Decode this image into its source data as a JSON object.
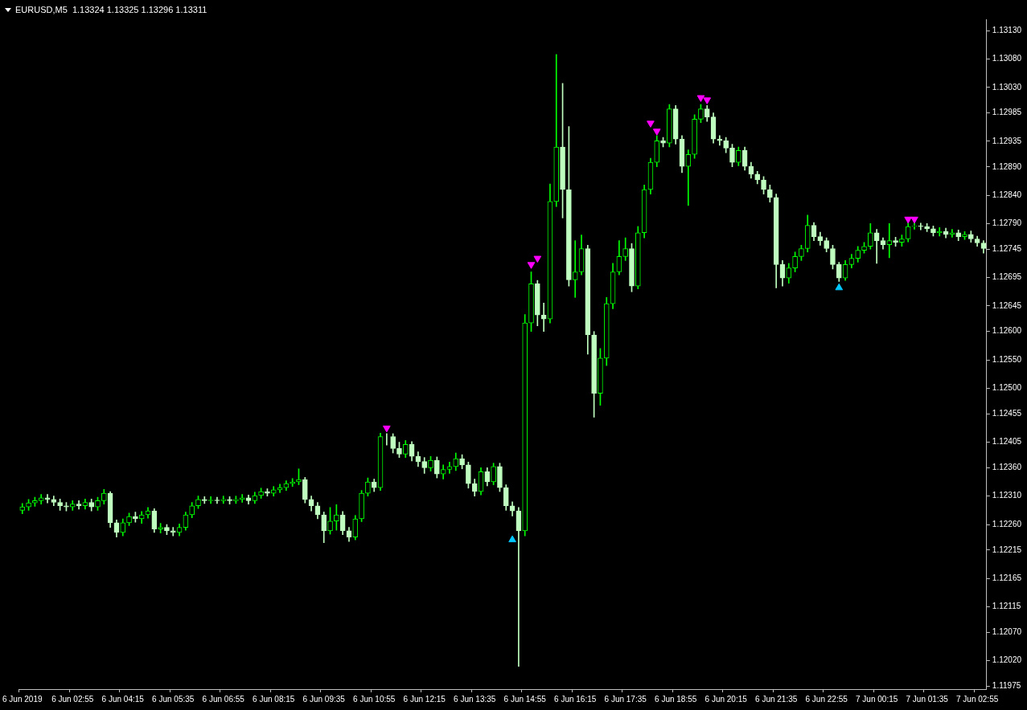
{
  "chart_data": {
    "type": "candlestick",
    "title": "EURUSD,M5  1.13324 1.13325 1.13296 1.13311",
    "colors": [
      "#00ff00",
      "#00ff00",
      "#00ff00",
      "#00ff00",
      "#bfffbf",
      "#bfffbf",
      "#bfffbf",
      "#bfffbf",
      "#00ff00",
      "#bfffbf",
      "#00ff00",
      "#bfffbf",
      "#00ff00",
      "#00ff00",
      "#bfffbf",
      "#bfffbf",
      "#00ff00",
      "#00ff00",
      "#bfffbf",
      "#00ff00",
      "#00ff00",
      "#bfffbf",
      "#00ff00",
      "#bfffbf",
      "#bfffbf",
      "#00ff00",
      "#00ff00",
      "#00ff00",
      "#00ff00",
      "#bfffbf",
      "#00ff00",
      "#bfffbf",
      "#00ff00",
      "#bfffbf",
      "#00ff00",
      "#00ff00",
      "#bfffbf",
      "#00ff00",
      "#00ff00",
      "#bfffbf",
      "#00ff00",
      "#00ff00",
      "#00ff00",
      "#00ff00",
      "#00ff00",
      "#bfffbf",
      "#bfffbf",
      "#bfffbf",
      "#bfffbf",
      "#00ff00",
      "#00ff00",
      "#bfffbf",
      "#bfffbf",
      "#00ff00",
      "#00ff00",
      "#00ff00",
      "#bfffbf",
      "#00ff00",
      "#bfffbf",
      "#bfffbf",
      "#bfffbf",
      "#00ff00",
      "#bfffbf",
      "#bfffbf",
      "#bfffbf",
      "#00ff00",
      "#bfffbf",
      "#00ff00",
      "#00ff00",
      "#00ff00",
      "#bfffbf",
      "#bfffbf",
      "#bfffbf",
      "#00ff00",
      "#bfffbf",
      "#00ff00",
      "#bfffbf",
      "#bfffbf",
      "#bfffbf",
      "#bfffbf",
      "#00ff00",
      "#00ff00",
      "#bfffbf",
      "#bfffbf",
      "#00ff00",
      "#00ff00",
      "#bfffbf",
      "#bfffbf",
      "#00ff00",
      "#00ff00",
      "#bfffbf",
      "#bfffbf",
      "#00ff00",
      "#00ff00",
      "#00ff00",
      "#00ff00",
      "#00ff00",
      "#bfffbf",
      "#00ff00",
      "#00ff00",
      "#00ff00",
      "#00ff00",
      "#bfffbf",
      "#00ff00",
      "#bfffbf",
      "#bfffbf",
      "#00ff00",
      "#00ff00",
      "#00ff00",
      "#bfffbf",
      "#bfffbf",
      "#bfffbf",
      "#bfffbf",
      "#bfffbf",
      "#00ff00",
      "#bfffbf",
      "#bfffbf",
      "#bfffbf",
      "#bfffbf",
      "#bfffbf",
      "#bfffbf",
      "#bfffbf",
      "#00ff00",
      "#00ff00",
      "#00ff00",
      "#00ff00",
      "#bfffbf",
      "#bfffbf",
      "#bfffbf",
      "#bfffbf",
      "#bfffbf",
      "#00ff00",
      "#00ff00",
      "#00ff00",
      "#00ff00",
      "#00ff00",
      "#bfffbf",
      "#bfffbf",
      "#00ff00",
      "#bfffbf",
      "#00ff00",
      "#00ff00",
      "#00ff00",
      "#bfffbf",
      "#bfffbf",
      "#bfffbf",
      "#00ff00",
      "#bfffbf",
      "#00ff00",
      "#bfffbf",
      "#00ff00",
      "#bfffbf",
      "#bfffbf",
      "#bfffbf"
    ],
    "categories": [
      "6 Jun 2019",
      null,
      null,
      null,
      null,
      null,
      null,
      null,
      "6 Jun 02:55",
      null,
      null,
      null,
      null,
      null,
      null,
      null,
      "6 Jun 04:15",
      null,
      null,
      null,
      null,
      null,
      null,
      null,
      "6 Jun 05:35",
      null,
      null,
      null,
      null,
      null,
      null,
      null,
      "6 Jun 06:55",
      null,
      null,
      null,
      null,
      null,
      null,
      null,
      "6 Jun 08:15",
      null,
      null,
      null,
      null,
      null,
      null,
      null,
      "6 Jun 09:35",
      null,
      null,
      null,
      null,
      null,
      null,
      null,
      "6 Jun 10:55",
      null,
      null,
      null,
      null,
      null,
      null,
      null,
      "6 Jun 12:15",
      null,
      null,
      null,
      null,
      null,
      null,
      null,
      "6 Jun 13:35",
      null,
      null,
      null,
      null,
      null,
      null,
      null,
      "6 Jun 14:55",
      null,
      null,
      null,
      null,
      null,
      null,
      null,
      "6 Jun 16:15",
      null,
      null,
      null,
      null,
      null,
      null,
      null,
      "6 Jun 17:35",
      null,
      null,
      null,
      null,
      null,
      null,
      null,
      "6 Jun 18:55",
      null,
      null,
      null,
      null,
      null,
      null,
      null,
      "6 Jun 20:15",
      null,
      null,
      null,
      null,
      null,
      null,
      null,
      "6 Jun 21:35",
      null,
      null,
      null,
      null,
      null,
      null,
      null,
      "6 Jun 22:55",
      null,
      null,
      null,
      null,
      null,
      null,
      null,
      "7 Jun 00:15",
      null,
      null,
      null,
      null,
      null,
      null,
      null,
      "7 Jun 01:35",
      null,
      null,
      null,
      null,
      null,
      null,
      null,
      "7 Jun 02:55",
      null
    ],
    "ohlc": [
      [
        1.12285,
        1.12297,
        1.12279,
        1.12291
      ],
      [
        1.12291,
        1.12304,
        1.12285,
        1.12298
      ],
      [
        1.12298,
        1.12308,
        1.12292,
        1.12302
      ],
      [
        1.12302,
        1.12313,
        1.12296,
        1.12307
      ],
      [
        1.12307,
        1.12313,
        1.12298,
        1.12304
      ],
      [
        1.12304,
        1.1231,
        1.12293,
        1.12299
      ],
      [
        1.12299,
        1.12305,
        1.12285,
        1.12293
      ],
      [
        1.12293,
        1.12299,
        1.12284,
        1.12291
      ],
      [
        1.12291,
        1.12302,
        1.12285,
        1.12296
      ],
      [
        1.12296,
        1.12302,
        1.12287,
        1.12293
      ],
      [
        1.12293,
        1.12305,
        1.12287,
        1.12299
      ],
      [
        1.12299,
        1.12305,
        1.12284,
        1.12291
      ],
      [
        1.12291,
        1.12308,
        1.12285,
        1.12302
      ],
      [
        1.12302,
        1.12322,
        1.12296,
        1.12315
      ],
      [
        1.12315,
        1.12318,
        1.12255,
        1.12263
      ],
      [
        1.12263,
        1.12268,
        1.12238,
        1.12246
      ],
      [
        1.12246,
        1.1227,
        1.1224,
        1.12263
      ],
      [
        1.12263,
        1.1228,
        1.12258,
        1.12274
      ],
      [
        1.12274,
        1.12282,
        1.12264,
        1.1227
      ],
      [
        1.1227,
        1.12283,
        1.12262,
        1.12277
      ],
      [
        1.12277,
        1.1229,
        1.12271,
        1.12284
      ],
      [
        1.12284,
        1.12288,
        1.12246,
        1.12252
      ],
      [
        1.12252,
        1.12262,
        1.12245,
        1.12255
      ],
      [
        1.12255,
        1.1226,
        1.12242,
        1.12249
      ],
      [
        1.12249,
        1.12255,
        1.1224,
        1.12246
      ],
      [
        1.12246,
        1.12261,
        1.1224,
        1.12255
      ],
      [
        1.12255,
        1.12282,
        1.1225,
        1.12277
      ],
      [
        1.12277,
        1.12299,
        1.12272,
        1.12293
      ],
      [
        1.12293,
        1.1231,
        1.12288,
        1.12304
      ],
      [
        1.12304,
        1.12309,
        1.12297,
        1.12302
      ],
      [
        1.12302,
        1.12309,
        1.12297,
        1.12303
      ],
      [
        1.12303,
        1.12308,
        1.12297,
        1.12302
      ],
      [
        1.12302,
        1.1231,
        1.12297,
        1.12304
      ],
      [
        1.12304,
        1.12309,
        1.12296,
        1.12302
      ],
      [
        1.12302,
        1.1231,
        1.12297,
        1.12304
      ],
      [
        1.12304,
        1.12313,
        1.12299,
        1.12307
      ],
      [
        1.12307,
        1.12312,
        1.12296,
        1.12302
      ],
      [
        1.12302,
        1.12317,
        1.12297,
        1.12311
      ],
      [
        1.12311,
        1.12324,
        1.12306,
        1.12318
      ],
      [
        1.12318,
        1.12323,
        1.1231,
        1.12315
      ],
      [
        1.12315,
        1.12327,
        1.1231,
        1.12321
      ],
      [
        1.12321,
        1.12331,
        1.12316,
        1.12325
      ],
      [
        1.12325,
        1.12337,
        1.1232,
        1.12332
      ],
      [
        1.12332,
        1.12341,
        1.12327,
        1.12335
      ],
      [
        1.12335,
        1.12358,
        1.1233,
        1.12339
      ],
      [
        1.12339,
        1.12343,
        1.12298,
        1.12304
      ],
      [
        1.12304,
        1.1231,
        1.12284,
        1.12293
      ],
      [
        1.12293,
        1.12299,
        1.1227,
        1.12277
      ],
      [
        1.12277,
        1.12282,
        1.12228,
        1.12249
      ],
      [
        1.12249,
        1.1229,
        1.12243,
        1.12266
      ],
      [
        1.12266,
        1.12295,
        1.1225,
        1.12277
      ],
      [
        1.12277,
        1.12283,
        1.12242,
        1.12249
      ],
      [
        1.12249,
        1.12255,
        1.1223,
        1.12238
      ],
      [
        1.12238,
        1.12276,
        1.12233,
        1.1227
      ],
      [
        1.1227,
        1.1232,
        1.12265,
        1.12315
      ],
      [
        1.12315,
        1.12342,
        1.1231,
        1.12335
      ],
      [
        1.12335,
        1.1234,
        1.12318,
        1.12325
      ],
      [
        1.12325,
        1.12421,
        1.1232,
        1.12415
      ],
      [
        1.12415,
        1.1242,
        1.124,
        1.12415
      ],
      [
        1.12415,
        1.1242,
        1.12386,
        1.12394
      ],
      [
        1.12394,
        1.12405,
        1.12378,
        1.12384
      ],
      [
        1.12384,
        1.12408,
        1.12378,
        1.12401
      ],
      [
        1.12401,
        1.12406,
        1.12372,
        1.1238
      ],
      [
        1.1238,
        1.12388,
        1.12362,
        1.12371
      ],
      [
        1.12371,
        1.12378,
        1.1235,
        1.1236
      ],
      [
        1.1236,
        1.1238,
        1.12354,
        1.12373
      ],
      [
        1.12373,
        1.12379,
        1.12342,
        1.12349
      ],
      [
        1.12349,
        1.12365,
        1.1234,
        1.12357
      ],
      [
        1.12357,
        1.1237,
        1.1235,
        1.12362
      ],
      [
        1.12362,
        1.12386,
        1.12355,
        1.12376
      ],
      [
        1.12376,
        1.12383,
        1.12358,
        1.12365
      ],
      [
        1.12365,
        1.1237,
        1.12324,
        1.12332
      ],
      [
        1.12332,
        1.1234,
        1.1231,
        1.12318
      ],
      [
        1.12318,
        1.1236,
        1.12312,
        1.12353
      ],
      [
        1.12353,
        1.1236,
        1.12328,
        1.12335
      ],
      [
        1.12335,
        1.12368,
        1.1233,
        1.12362
      ],
      [
        1.12362,
        1.12368,
        1.12318,
        1.12325
      ],
      [
        1.12325,
        1.1233,
        1.12285,
        1.12293
      ],
      [
        1.12293,
        1.123,
        1.12275,
        1.12284
      ],
      [
        1.12284,
        1.1229,
        1.1201,
        1.12249
      ],
      [
        1.12249,
        1.1263,
        1.1224,
        1.12615
      ],
      [
        1.12615,
        1.12705,
        1.126,
        1.12684
      ],
      [
        1.12684,
        1.1269,
        1.1261,
        1.12629
      ],
      [
        1.12629,
        1.1265,
        1.126,
        1.12622
      ],
      [
        1.12622,
        1.1286,
        1.12615,
        1.12829
      ],
      [
        1.12829,
        1.13088,
        1.1282,
        1.12925
      ],
      [
        1.12925,
        1.13037,
        1.128,
        1.1285
      ],
      [
        1.1285,
        1.12961,
        1.1268,
        1.12691
      ],
      [
        1.12691,
        1.1276,
        1.1266,
        1.12705
      ],
      [
        1.12705,
        1.1277,
        1.127,
        1.12746
      ],
      [
        1.12746,
        1.12752,
        1.1256,
        1.12594
      ],
      [
        1.12594,
        1.126,
        1.12449,
        1.12491
      ],
      [
        1.12491,
        1.1257,
        1.1247,
        1.12553
      ],
      [
        1.12553,
        1.1266,
        1.1254,
        1.12649
      ],
      [
        1.12649,
        1.1272,
        1.1264,
        1.12705
      ],
      [
        1.12705,
        1.1276,
        1.127,
        1.12732
      ],
      [
        1.12732,
        1.12765,
        1.12725,
        1.12746
      ],
      [
        1.12746,
        1.12755,
        1.1267,
        1.1268
      ],
      [
        1.1268,
        1.12785,
        1.12675,
        1.12774
      ],
      [
        1.12774,
        1.12858,
        1.12765,
        1.1285
      ],
      [
        1.1285,
        1.12905,
        1.12842,
        1.12898
      ],
      [
        1.12898,
        1.12945,
        1.1289,
        1.12936
      ],
      [
        1.12936,
        1.12942,
        1.12925,
        1.12932
      ],
      [
        1.12932,
        1.13,
        1.12925,
        1.12992
      ],
      [
        1.12992,
        1.12998,
        1.1293,
        1.12939
      ],
      [
        1.12939,
        1.12945,
        1.1288,
        1.12891
      ],
      [
        1.12891,
        1.1292,
        1.12822,
        1.12912
      ],
      [
        1.12912,
        1.12982,
        1.12905,
        1.12974
      ],
      [
        1.12974,
        1.13,
        1.12968,
        1.12992
      ],
      [
        1.12992,
        1.12998,
        1.1297,
        1.12978
      ],
      [
        1.12978,
        1.12985,
        1.12932,
        1.12939
      ],
      [
        1.12939,
        1.12945,
        1.12928,
        1.12936
      ],
      [
        1.12936,
        1.12942,
        1.12915,
        1.12923
      ],
      [
        1.12923,
        1.1293,
        1.1289,
        1.12898
      ],
      [
        1.12898,
        1.12925,
        1.12892,
        1.12919
      ],
      [
        1.12919,
        1.12925,
        1.12884,
        1.12891
      ],
      [
        1.12891,
        1.12898,
        1.1287,
        1.12877
      ],
      [
        1.12877,
        1.12882,
        1.1286,
        1.12867
      ],
      [
        1.12867,
        1.12873,
        1.12842,
        1.1285
      ],
      [
        1.1285,
        1.12858,
        1.12828,
        1.12836
      ],
      [
        1.12836,
        1.12842,
        1.12677,
        1.12718
      ],
      [
        1.12718,
        1.12725,
        1.1268,
        1.12694
      ],
      [
        1.12694,
        1.1272,
        1.12685,
        1.12712
      ],
      [
        1.12712,
        1.1274,
        1.12705,
        1.12732
      ],
      [
        1.12732,
        1.12752,
        1.12725,
        1.12746
      ],
      [
        1.12746,
        1.12805,
        1.1274,
        1.12787
      ],
      [
        1.12787,
        1.12792,
        1.1276,
        1.12767
      ],
      [
        1.12767,
        1.12775,
        1.12752,
        1.1276
      ],
      [
        1.1276,
        1.12765,
        1.1274,
        1.12746
      ],
      [
        1.12746,
        1.12752,
        1.1271,
        1.12718
      ],
      [
        1.12718,
        1.12722,
        1.12688,
        1.12694
      ],
      [
        1.12694,
        1.12725,
        1.1269,
        1.12718
      ],
      [
        1.12718,
        1.12736,
        1.12712,
        1.12729
      ],
      [
        1.12729,
        1.1275,
        1.12722,
        1.12743
      ],
      [
        1.12743,
        1.12757,
        1.12738,
        1.1275
      ],
      [
        1.1275,
        1.1279,
        1.12745,
        1.12774
      ],
      [
        1.12774,
        1.1278,
        1.1272,
        1.1276
      ],
      [
        1.1276,
        1.12765,
        1.12745,
        1.12753
      ],
      [
        1.12753,
        1.1279,
        1.1273,
        1.1276
      ],
      [
        1.1276,
        1.12766,
        1.1275,
        1.12757
      ],
      [
        1.12757,
        1.1277,
        1.1275,
        1.12763
      ],
      [
        1.12763,
        1.12792,
        1.12758,
        1.12785
      ],
      [
        1.12785,
        1.12792,
        1.1278,
        1.12786
      ],
      [
        1.12786,
        1.12791,
        1.12779,
        1.12785
      ],
      [
        1.12785,
        1.1279,
        1.12776,
        1.12781
      ],
      [
        1.12781,
        1.12786,
        1.12768,
        1.12774
      ],
      [
        1.12774,
        1.12783,
        1.12768,
        1.12776
      ],
      [
        1.12776,
        1.12782,
        1.12765,
        1.12771
      ],
      [
        1.12771,
        1.1278,
        1.12766,
        1.12774
      ],
      [
        1.12774,
        1.12779,
        1.1276,
        1.12767
      ],
      [
        1.12767,
        1.12776,
        1.12762,
        1.12771
      ],
      [
        1.12771,
        1.12777,
        1.12757,
        1.12763
      ],
      [
        1.12763,
        1.12768,
        1.1275,
        1.12756
      ],
      [
        1.12756,
        1.1276,
        1.12738,
        1.12746
      ]
    ],
    "series": [
      {
        "type": "scatter",
        "color": "#ff00ff",
        "marker": "triangle",
        "values": [
          null,
          null,
          null,
          null,
          null,
          null,
          null,
          null,
          null,
          null,
          null,
          null,
          null,
          null,
          null,
          null,
          null,
          null,
          null,
          null,
          null,
          null,
          null,
          null,
          null,
          null,
          null,
          null,
          null,
          null,
          null,
          null,
          null,
          null,
          null,
          null,
          null,
          null,
          null,
          null,
          null,
          null,
          null,
          null,
          null,
          null,
          null,
          null,
          null,
          null,
          null,
          null,
          null,
          null,
          null,
          null,
          null,
          null,
          1.1243,
          null,
          null,
          null,
          null,
          null,
          null,
          null,
          null,
          null,
          null,
          null,
          null,
          null,
          null,
          null,
          null,
          null,
          null,
          null,
          null,
          null,
          null,
          1.12718,
          1.12729,
          null,
          null,
          null,
          null,
          null,
          null,
          null,
          null,
          null,
          null,
          null,
          null,
          null,
          null,
          null,
          null,
          null,
          1.12967,
          1.12953,
          null,
          null,
          null,
          null,
          null,
          null,
          1.13012,
          1.13008,
          null,
          null,
          null,
          null,
          null,
          null,
          null,
          null,
          null,
          null,
          null,
          null,
          null,
          null,
          null,
          null,
          null,
          null,
          null,
          null,
          null,
          null,
          null,
          null,
          null,
          null,
          null,
          null,
          null,
          null,
          null,
          1.12798,
          1.12798,
          null,
          null,
          null,
          null,
          null,
          null,
          null,
          null,
          null,
          null,
          null
        ]
      },
      {
        "type": "scatter",
        "color": "#00c8ff",
        "marker": "triangle",
        "values": [
          null,
          null,
          null,
          null,
          null,
          null,
          null,
          null,
          null,
          null,
          null,
          null,
          null,
          null,
          null,
          null,
          null,
          null,
          null,
          null,
          null,
          null,
          null,
          null,
          null,
          null,
          null,
          null,
          null,
          null,
          null,
          null,
          null,
          null,
          null,
          null,
          null,
          null,
          null,
          null,
          null,
          null,
          null,
          null,
          null,
          null,
          null,
          null,
          null,
          null,
          null,
          null,
          null,
          null,
          null,
          null,
          null,
          null,
          null,
          null,
          null,
          null,
          null,
          null,
          null,
          null,
          null,
          null,
          null,
          null,
          null,
          null,
          null,
          null,
          null,
          null,
          null,
          null,
          1.12233,
          null,
          null,
          null,
          null,
          null,
          null,
          null,
          null,
          null,
          null,
          null,
          null,
          null,
          null,
          null,
          null,
          null,
          null,
          null,
          null,
          null,
          null,
          null,
          null,
          null,
          null,
          null,
          null,
          null,
          null,
          null,
          null,
          null,
          null,
          null,
          null,
          null,
          null,
          null,
          null,
          null,
          null,
          null,
          null,
          null,
          null,
          null,
          null,
          null,
          null,
          null,
          1.12677,
          null,
          null,
          null,
          null,
          null,
          null,
          null,
          null,
          null,
          null,
          null,
          null,
          null,
          null,
          null,
          null,
          null,
          null,
          null,
          null,
          null,
          null,
          null
        ]
      }
    ],
    "ylim": [
      1.1197,
      1.1315
    ],
    "yticks": [
      {
        "value": 1.1313,
        "label": "1.13130"
      },
      {
        "value": 1.1308,
        "label": "1.13080"
      },
      {
        "value": 1.1303,
        "label": "1.13030"
      },
      1.12985,
      1.12935,
      {
        "value": 1.1289,
        "label": "1.12890"
      },
      {
        "value": 1.1284,
        "label": "1.12840"
      },
      {
        "value": 1.1279,
        "label": "1.12790"
      },
      1.12745,
      1.12695,
      1.12645,
      {
        "value": 1.126,
        "label": "1.12600"
      },
      {
        "value": 1.1255,
        "label": "1.12550"
      },
      {
        "value": 1.125,
        "label": "1.12500"
      },
      1.12455,
      1.12405,
      {
        "value": 1.1236,
        "label": "1.12360"
      },
      {
        "value": 1.1231,
        "label": "1.12310"
      },
      {
        "value": 1.1226,
        "label": "1.12260"
      },
      1.12215,
      1.12165,
      1.12115,
      {
        "value": 1.1207,
        "label": "1.12070"
      },
      {
        "value": 1.1202,
        "label": "1.12020"
      },
      1.11975
    ]
  }
}
